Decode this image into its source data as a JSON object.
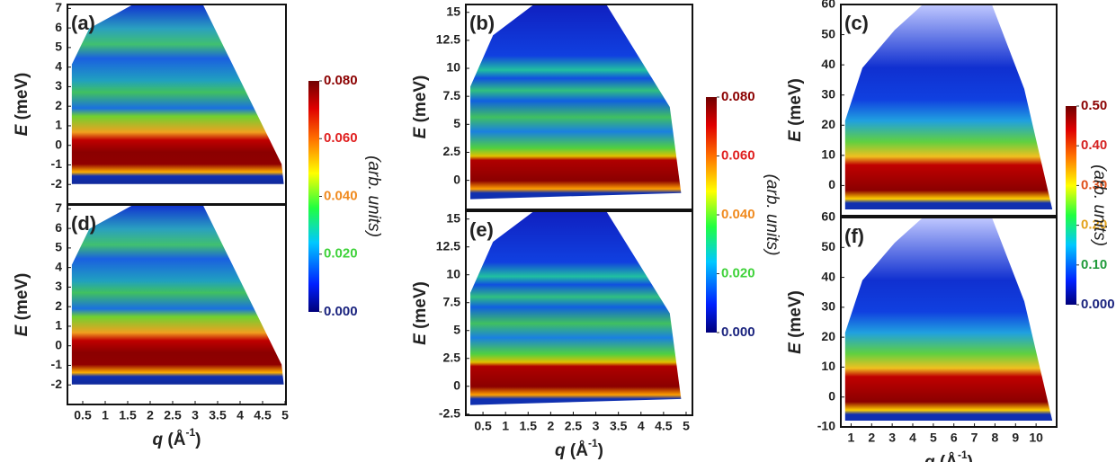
{
  "chart_data": [
    {
      "type": "heatmap",
      "label": "(a)",
      "ylabel": {
        "symbol": "E",
        "unit": "(meV)"
      },
      "xlim": [
        0.16,
        5.02
      ],
      "ylim": [
        -3.0,
        7.2
      ],
      "yticks": [
        -2,
        -1,
        0,
        1,
        2,
        3,
        4,
        5,
        6,
        7
      ]
    },
    {
      "type": "heatmap",
      "label": "(b)",
      "ylabel": {
        "symbol": "E",
        "unit": "(meV)"
      },
      "xlim": [
        0.12,
        5.14
      ],
      "ylim": [
        -2.6,
        15.7
      ],
      "yticks": [
        0,
        2.5,
        5,
        7.5,
        10,
        12.5,
        15
      ]
    },
    {
      "type": "heatmap",
      "label": "(c)",
      "ylabel": {
        "symbol": "E",
        "unit": "(meV)"
      },
      "xlim": [
        0.5,
        11
      ],
      "ylim": [
        -10,
        60
      ],
      "yticks": [
        0,
        10,
        20,
        30,
        40,
        50,
        60
      ]
    },
    {
      "type": "heatmap",
      "label": "(d)",
      "ylabel": {
        "symbol": "E",
        "unit": "(meV)"
      },
      "xlabel": {
        "symbol": "q",
        "unit": "(Å",
        "sup": "-1",
        "close": ")"
      },
      "xlim": [
        0.16,
        5.02
      ],
      "ylim": [
        -3.0,
        7.2
      ],
      "yticks": [
        -2,
        -1,
        0,
        1,
        2,
        3,
        4,
        5,
        6,
        7
      ],
      "xticks": [
        0.5,
        1,
        1.5,
        2,
        2.5,
        3,
        3.5,
        4,
        4.5,
        5
      ]
    },
    {
      "type": "heatmap",
      "label": "(e)",
      "ylabel": {
        "symbol": "E",
        "unit": "(meV)"
      },
      "xlabel": {
        "symbol": "q",
        "unit": "(Å",
        "sup": "-1",
        "close": ")"
      },
      "xlim": [
        0.12,
        5.14
      ],
      "ylim": [
        -2.6,
        15.7
      ],
      "yticks": [
        -2.5,
        0,
        2.5,
        5,
        7.5,
        10,
        12.5,
        15
      ],
      "xticks": [
        0.5,
        1,
        1.5,
        2,
        2.5,
        3,
        3.5,
        4,
        4.5,
        5
      ]
    },
    {
      "type": "heatmap",
      "label": "(f)",
      "ylabel": {
        "symbol": "E",
        "unit": "(meV)"
      },
      "xlabel": {
        "symbol": "q",
        "unit": "(Å",
        "sup": "-1",
        "close": ")"
      },
      "xlim": [
        0.5,
        11
      ],
      "ylim": [
        -10,
        60
      ],
      "yticks": [
        -10,
        0,
        10,
        20,
        30,
        40,
        50,
        60
      ],
      "xticks": [
        1,
        2,
        3,
        4,
        5,
        6,
        7,
        8,
        9,
        10
      ]
    }
  ],
  "colorbars": [
    {
      "label": "(arb. units)",
      "lim": [
        0,
        0.08
      ],
      "ticks": [
        {
          "value": 0,
          "label": "0.000"
        },
        {
          "value": 0.02,
          "label": "0.020"
        },
        {
          "value": 0.04,
          "label": "0.040"
        },
        {
          "value": 0.06,
          "label": "0.060"
        },
        {
          "value": 0.08,
          "label": "0.080"
        }
      ],
      "colors": [
        "#1a237e",
        "#3fd23a",
        "#f08a1e",
        "#e02020",
        "#8b0000"
      ]
    },
    {
      "label": "(arb. units)",
      "lim": [
        0,
        0.08
      ],
      "ticks": [
        {
          "value": 0,
          "label": "0.000"
        },
        {
          "value": 0.02,
          "label": "0.020"
        },
        {
          "value": 0.04,
          "label": "0.040"
        },
        {
          "value": 0.06,
          "label": "0.060"
        },
        {
          "value": 0.08,
          "label": "0.080"
        }
      ],
      "colors": [
        "#1a237e",
        "#3fd23a",
        "#f08a1e",
        "#e02020",
        "#8b0000"
      ]
    },
    {
      "label": "(arb. units)",
      "lim": [
        0,
        0.5
      ],
      "ticks": [
        {
          "value": 0,
          "label": "0.000"
        },
        {
          "value": 0.1,
          "label": "0.10"
        },
        {
          "value": 0.2,
          "label": "0.20"
        },
        {
          "value": 0.3,
          "label": "0.30"
        },
        {
          "value": 0.4,
          "label": "0.40"
        },
        {
          "value": 0.5,
          "label": "0.50"
        }
      ],
      "colors": [
        "#1a237e",
        "#1f9a3a",
        "#e3a21a",
        "#e0501a",
        "#d42020",
        "#8b0000"
      ]
    }
  ]
}
